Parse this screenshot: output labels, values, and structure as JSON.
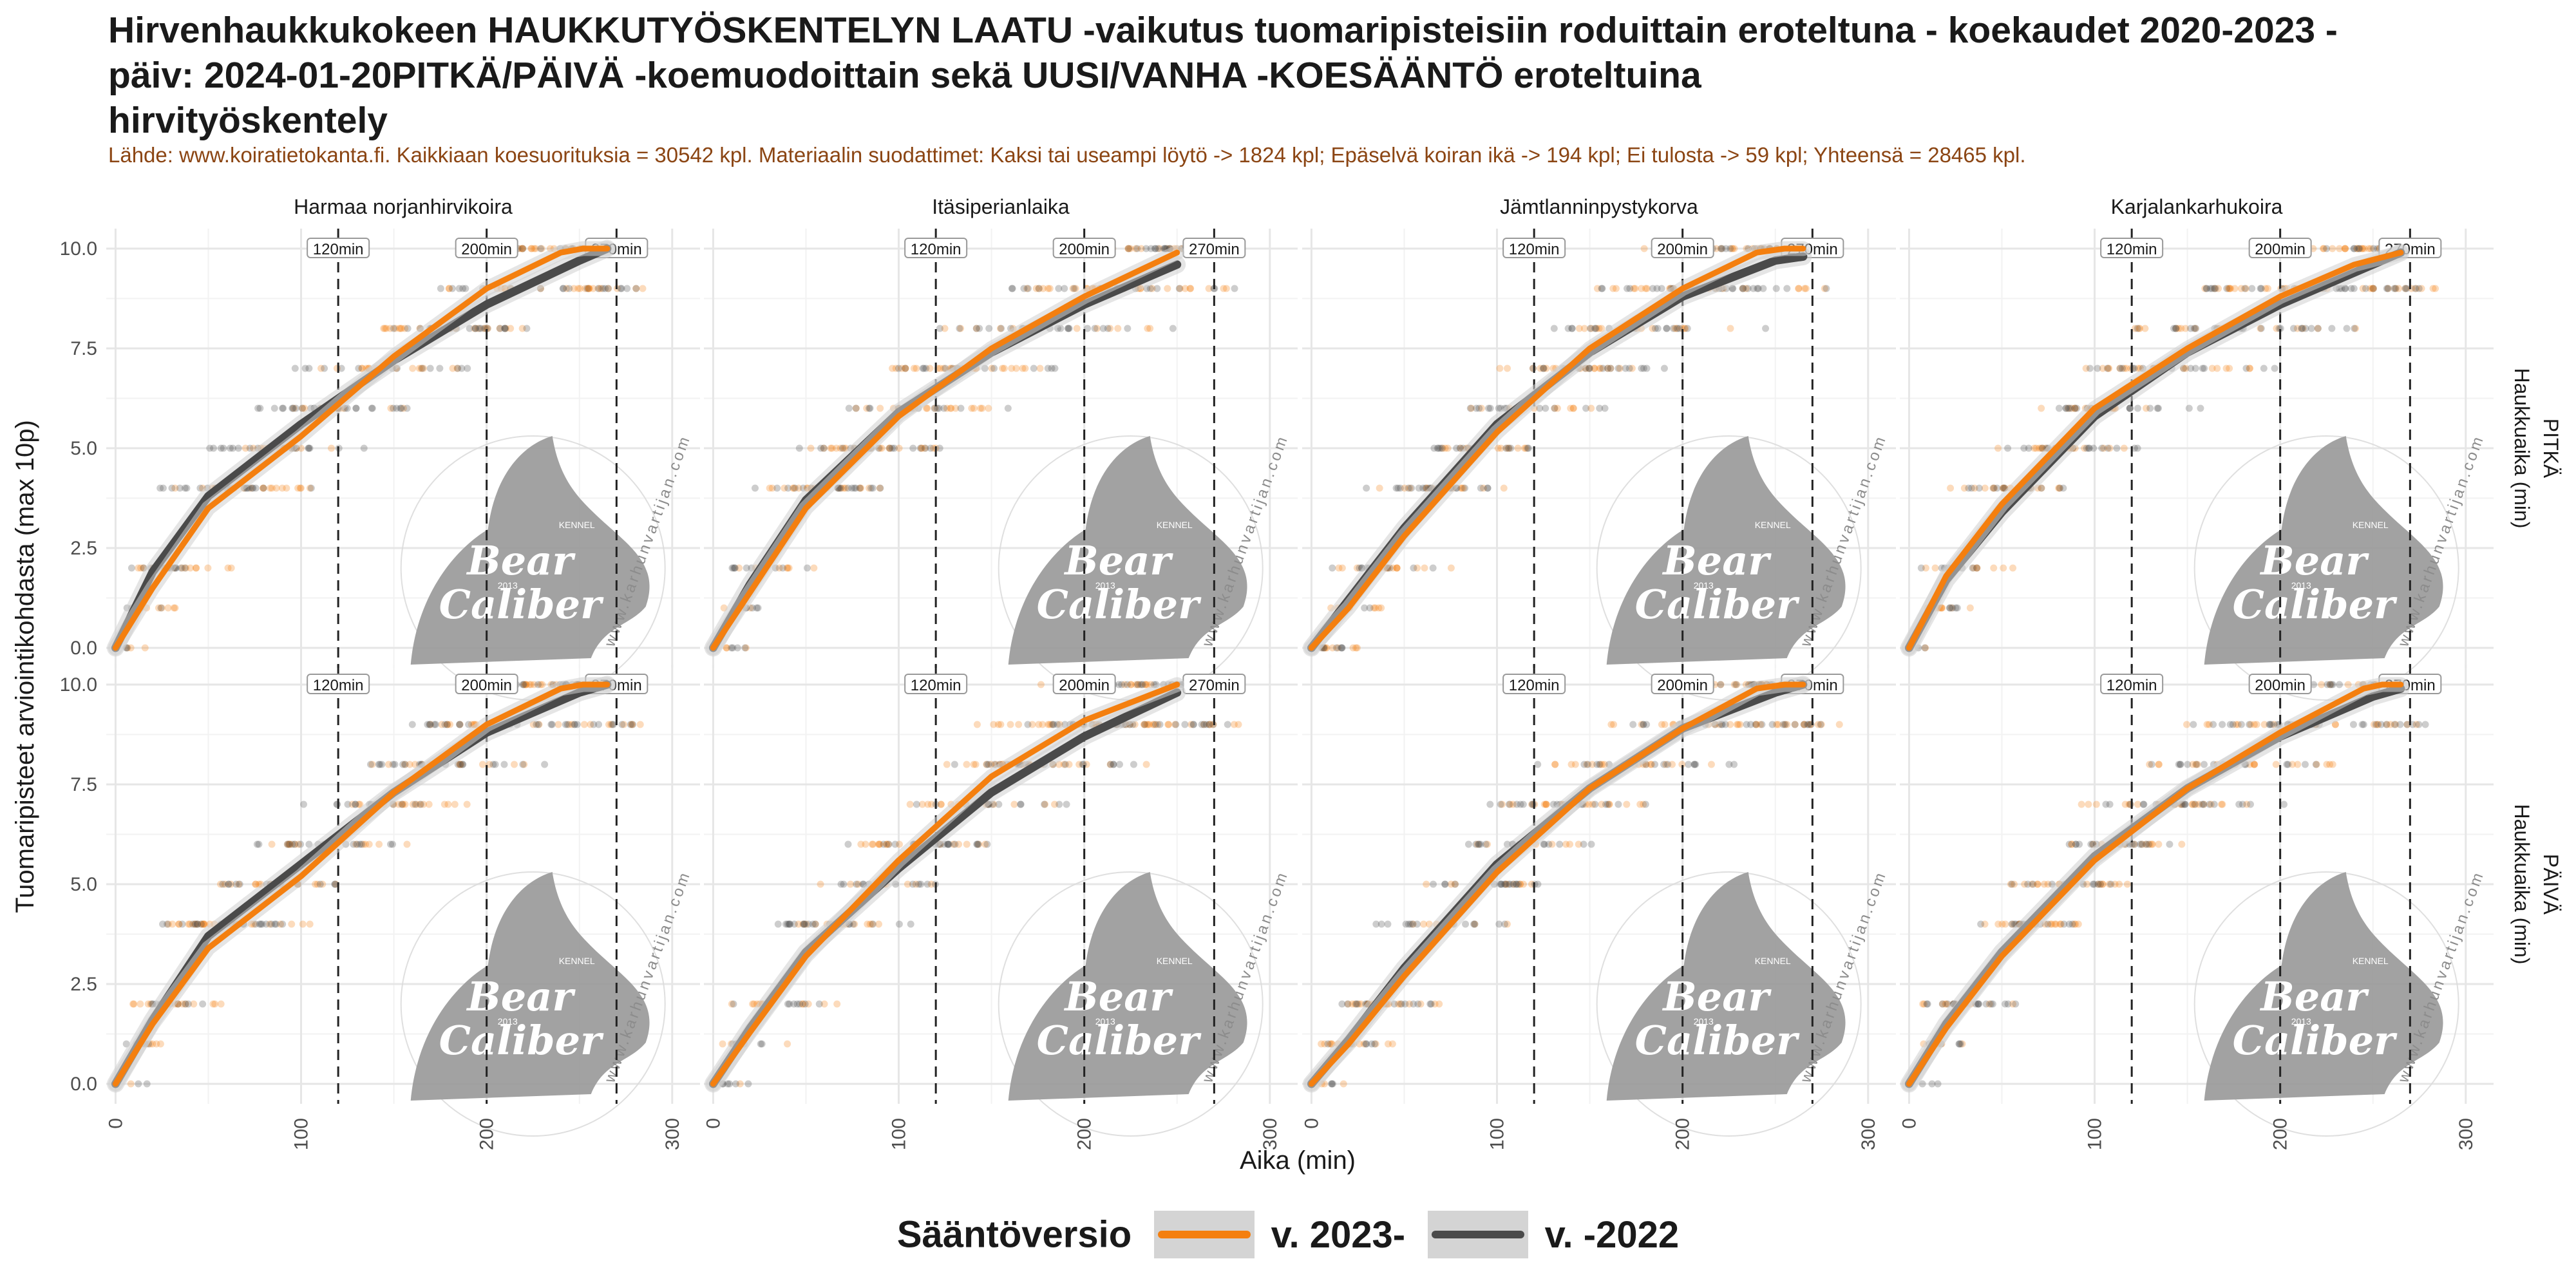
{
  "title_lines": [
    "Hirvenhaukkukokeen HAUKKUTYÖSKENTELYN LAATU -vaikutus tuomaripisteisiin roduittain eroteltuna - koekaudet 2020-2023 -",
    "päiv: 2024-01-20PITKÄ/PÄIVÄ -koemuodoittain sekä UUSI/VANHA -KOESÄÄNTÖ eroteltuina",
    "hirvityöskentely"
  ],
  "subtitle": "Lähde: www.koiratietokanta.fi. Kaikkiaan koesuorituksia = 30542 kpl. Materiaalin suodattimet: Kaksi tai useampi löytö -> 1824 kpl; Epäselvä koiran ikä -> 194 kpl; Ei tulosta -> 59 kpl; Yhteensä = 28465 kpl.",
  "watermark": {
    "line1": "Bear",
    "line2": "Caliber",
    "kennel": "KENNEL",
    "year": "2013",
    "url": "www.karhunvartijan.com"
  },
  "chart_data": {
    "type": "scatter",
    "facet_columns": [
      "Harmaa norjanhirvikoira",
      "Itäsiperianlaika",
      "Jämtlanninpystykorva",
      "Karjalankarhukoira"
    ],
    "facet_rows": [
      "PITKÄ",
      "PÄIVÄ"
    ],
    "row_axis_label": "Haukkuaika (min)",
    "xlabel": "Aika (min)",
    "ylabel": "Tuomaripisteet arviointikohdasta (max 10p)",
    "xlim": [
      -5,
      315
    ],
    "ylim": [
      -0.5,
      10.5
    ],
    "x_ticks": [
      0,
      100,
      200,
      300
    ],
    "y_ticks": [
      0.0,
      2.5,
      5.0,
      7.5,
      10.0
    ],
    "y_tick_labels": [
      "0.0",
      "2.5",
      "5.0",
      "7.5",
      "10.0"
    ],
    "grid": true,
    "reference_lines": [
      {
        "x": 120,
        "label": "120min"
      },
      {
        "x": 200,
        "label": "200min"
      },
      {
        "x": 270,
        "label": "270min"
      }
    ],
    "legend": {
      "title": "Sääntöversio",
      "position": "bottom",
      "items": [
        {
          "label": "v. 2023-",
          "color": "#f47f0f"
        },
        {
          "label": "v. -2022",
          "color": "#4a4a4a"
        }
      ]
    },
    "panels": [
      {
        "column": "Harmaa norjanhirvikoira",
        "row": "PITKÄ",
        "series": [
          {
            "name": "v. 2023-",
            "x": [
              0,
              20,
              50,
              100,
              150,
              200,
              240,
              252,
              265
            ],
            "y": [
              0.0,
              1.5,
              3.5,
              5.3,
              7.3,
              9.0,
              9.9,
              10.0,
              10.0
            ]
          },
          {
            "name": "v. -2022",
            "x": [
              0,
              20,
              50,
              100,
              150,
              200,
              250,
              265
            ],
            "y": [
              0.0,
              1.9,
              3.8,
              5.6,
              7.2,
              8.6,
              9.7,
              10.0
            ]
          }
        ]
      },
      {
        "column": "Itäsiperianlaika",
        "row": "PITKÄ",
        "series": [
          {
            "name": "v. 2023-",
            "x": [
              0,
              20,
              50,
              100,
              150,
              200,
              250
            ],
            "y": [
              0.0,
              1.4,
              3.5,
              5.8,
              7.5,
              8.8,
              9.9
            ]
          },
          {
            "name": "v. -2022",
            "x": [
              0,
              20,
              50,
              100,
              150,
              200,
              250
            ],
            "y": [
              0.0,
              1.6,
              3.7,
              5.9,
              7.4,
              8.6,
              9.6
            ]
          }
        ]
      },
      {
        "column": "Jämtlanninpystykorva",
        "row": "PITKÄ",
        "series": [
          {
            "name": "v. 2023-",
            "x": [
              0,
              20,
              50,
              100,
              150,
              200,
              240,
              255,
              265
            ],
            "y": [
              0.0,
              1.0,
              2.8,
              5.4,
              7.5,
              9.0,
              9.9,
              10.0,
              10.0
            ]
          },
          {
            "name": "v. -2022",
            "x": [
              0,
              20,
              50,
              100,
              150,
              200,
              250,
              265
            ],
            "y": [
              0.0,
              1.2,
              3.0,
              5.6,
              7.4,
              8.8,
              9.7,
              9.8
            ]
          }
        ]
      },
      {
        "column": "Karjalankarhukoira",
        "row": "PITKÄ",
        "series": [
          {
            "name": "v. 2023-",
            "x": [
              0,
              20,
              50,
              100,
              150,
              200,
              240,
              265
            ],
            "y": [
              0.0,
              1.8,
              3.6,
              6.0,
              7.5,
              8.8,
              9.6,
              9.9
            ]
          },
          {
            "name": "v. -2022",
            "x": [
              0,
              20,
              50,
              100,
              150,
              200,
              250,
              265
            ],
            "y": [
              0.0,
              1.7,
              3.4,
              5.8,
              7.4,
              8.6,
              9.6,
              9.9
            ]
          }
        ]
      },
      {
        "column": "Harmaa norjanhirvikoira",
        "row": "PÄIVÄ",
        "series": [
          {
            "name": "v. 2023-",
            "x": [
              0,
              20,
              50,
              100,
              150,
              200,
              240,
              252,
              265
            ],
            "y": [
              0.0,
              1.5,
              3.4,
              5.2,
              7.3,
              9.0,
              9.9,
              10.0,
              10.0
            ]
          },
          {
            "name": "v. -2022",
            "x": [
              0,
              20,
              50,
              100,
              150,
              200,
              250,
              265
            ],
            "y": [
              0.0,
              1.6,
              3.7,
              5.5,
              7.3,
              8.8,
              9.8,
              10.0
            ]
          }
        ]
      },
      {
        "column": "Itäsiperianlaika",
        "row": "PÄIVÄ",
        "series": [
          {
            "name": "v. 2023-",
            "x": [
              0,
              20,
              50,
              100,
              150,
              200,
              250
            ],
            "y": [
              0.0,
              1.3,
              3.2,
              5.6,
              7.7,
              9.1,
              10.0
            ]
          },
          {
            "name": "v. -2022",
            "x": [
              0,
              20,
              50,
              100,
              150,
              200,
              250
            ],
            "y": [
              0.0,
              1.4,
              3.3,
              5.4,
              7.3,
              8.7,
              9.8
            ]
          }
        ]
      },
      {
        "column": "Jämtlanninpystykorva",
        "row": "PÄIVÄ",
        "series": [
          {
            "name": "v. 2023-",
            "x": [
              0,
              20,
              50,
              100,
              150,
              200,
              240,
              255,
              265
            ],
            "y": [
              0.0,
              1.0,
              2.7,
              5.3,
              7.4,
              8.9,
              9.9,
              10.0,
              10.0
            ]
          },
          {
            "name": "v. -2022",
            "x": [
              0,
              20,
              50,
              100,
              150,
              200,
              250,
              265
            ],
            "y": [
              0.0,
              1.1,
              2.9,
              5.5,
              7.4,
              8.9,
              9.8,
              10.0
            ]
          }
        ]
      },
      {
        "column": "Karjalankarhukoira",
        "row": "PÄIVÄ",
        "series": [
          {
            "name": "v. 2023-",
            "x": [
              0,
              20,
              50,
              100,
              150,
              200,
              245,
              255,
              265
            ],
            "y": [
              0.0,
              1.4,
              3.2,
              5.6,
              7.4,
              8.8,
              9.9,
              10.0,
              10.0
            ]
          },
          {
            "name": "v. -2022",
            "x": [
              0,
              20,
              50,
              100,
              150,
              200,
              250,
              265
            ],
            "y": [
              0.0,
              1.5,
              3.3,
              5.7,
              7.4,
              8.7,
              9.7,
              9.9
            ]
          }
        ]
      }
    ]
  }
}
